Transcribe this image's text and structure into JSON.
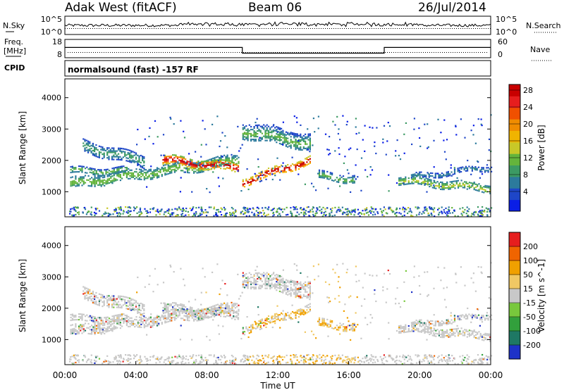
{
  "header": {
    "station": "Adak West (fitACF)",
    "beam": "Beam 06",
    "date": "26/Jul/2014"
  },
  "noise_panel": {
    "left_label": "N.Sky",
    "right_label": "N.Search",
    "left_ticks": [
      "10^5",
      "10^0"
    ],
    "right_ticks": [
      "10^5",
      "10^0"
    ]
  },
  "freq_panel": {
    "left_label_line1": "Freq.",
    "left_label_line2": "[MHz]",
    "left_ticks": [
      "18",
      "8"
    ],
    "right_label": "Nave",
    "right_ticks": [
      "60",
      "0"
    ],
    "freq_segments": [
      {
        "start_h": 0,
        "end_h": 10,
        "mhz": 14
      },
      {
        "start_h": 10,
        "end_h": 18,
        "mhz": 10.5
      },
      {
        "start_h": 18,
        "end_h": 24,
        "mhz": 14
      }
    ]
  },
  "cpid": {
    "label": "CPID",
    "text": "normalsound (fast) -157 RF"
  },
  "chart_data": [
    {
      "type": "heatmap",
      "name": "power",
      "ylabel": "Slant Range [km]",
      "yticks": [
        1000,
        2000,
        3000,
        4000
      ],
      "ylim": [
        200,
        4600
      ],
      "xlim": [
        0,
        24
      ],
      "colorbar": {
        "label": "Power [dB]",
        "ticks": [
          "4",
          "8",
          "12",
          "16",
          "20",
          "24",
          "28"
        ],
        "colors": [
          "#0a1ee6",
          "#1e46c8",
          "#2c7a9c",
          "#3c9a64",
          "#64b43c",
          "#c8c828",
          "#f0b400",
          "#f08c00",
          "#f05000",
          "#e61e1e",
          "#c80000"
        ]
      },
      "bands": [
        {
          "x0": 0.3,
          "x1": 9.8,
          "center_start_km": 1300,
          "center_end_km": 2050,
          "width_km": 350,
          "intensity": 0.35
        },
        {
          "x0": 5.5,
          "x1": 9.8,
          "center_start_km": 2050,
          "center_end_km": 1800,
          "width_km": 300,
          "intensity": 0.8
        },
        {
          "x0": 10.0,
          "x1": 13.8,
          "center_start_km": 1350,
          "center_end_km": 2050,
          "width_km": 250,
          "intensity": 0.85
        },
        {
          "x0": 0.3,
          "x1": 3.5,
          "center_start_km": 1700,
          "center_end_km": 1700,
          "width_km": 200,
          "intensity": 0.3
        },
        {
          "x0": 1.0,
          "x1": 4.5,
          "center_start_km": 2500,
          "center_end_km": 2000,
          "width_km": 400,
          "intensity": 0.25
        },
        {
          "x0": 14.3,
          "x1": 16.3,
          "center_start_km": 1550,
          "center_end_km": 1450,
          "width_km": 250,
          "intensity": 0.3
        },
        {
          "x0": 18.8,
          "x1": 24.0,
          "center_start_km": 1400,
          "center_end_km": 1150,
          "width_km": 250,
          "intensity": 0.4
        },
        {
          "x0": 19.5,
          "x1": 24.0,
          "center_start_km": 1500,
          "center_end_km": 1800,
          "width_km": 150,
          "intensity": 0.2
        },
        {
          "x0": 10.0,
          "x1": 13.8,
          "center_start_km": 3000,
          "center_end_km": 2600,
          "width_km": 500,
          "intensity": 0.3
        }
      ]
    },
    {
      "type": "heatmap",
      "name": "velocity",
      "ylabel": "Slant Range [km]",
      "yticks": [
        1000,
        2000,
        3000,
        4000
      ],
      "ylim": [
        200,
        4600
      ],
      "xlim": [
        0,
        24
      ],
      "xticks": [
        "00:00",
        "04:00",
        "08:00",
        "12:00",
        "16:00",
        "20:00",
        "00:00"
      ],
      "xlabel": "Time UT",
      "colorbar": {
        "label": "Velocity [m s^-1]",
        "ticks": [
          "200",
          "100",
          "50",
          "15",
          "-15",
          "-50",
          "-100",
          "-200"
        ],
        "colors": [
          "#1e32c8",
          "#1e7864",
          "#32a03c",
          "#78c83c",
          "#c8c8c8",
          "#f0c864",
          "#f0a000",
          "#f06400",
          "#e61e1e"
        ]
      }
    }
  ]
}
